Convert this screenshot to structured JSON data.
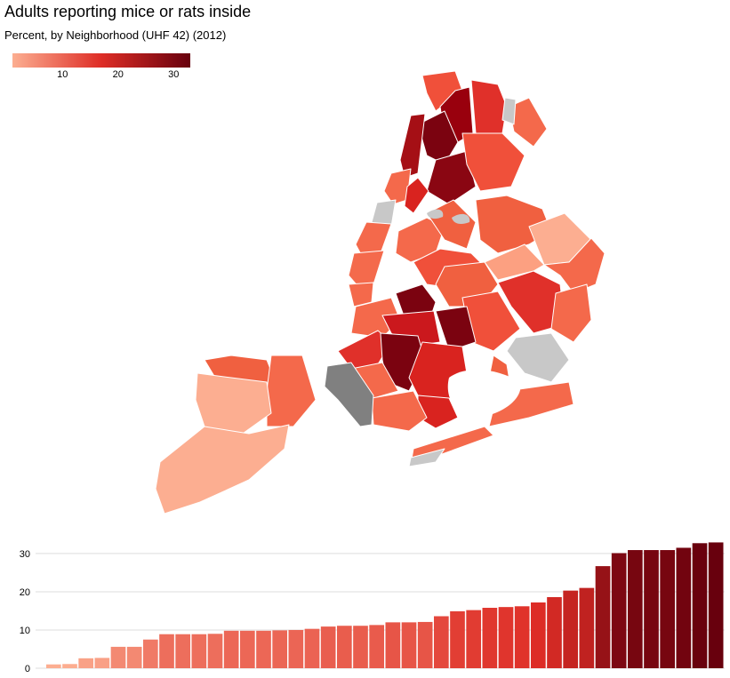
{
  "header": {
    "title": "Adults reporting mice or rats inside",
    "subtitle": "Percent, by Neighborhood (UHF 42) (2012)"
  },
  "legend": {
    "ticks": [
      "10",
      "20",
      "30"
    ],
    "tick_values": [
      10,
      20,
      30
    ],
    "min": 1,
    "max": 33,
    "color_low": "#fcae91",
    "color_high": "#67000d"
  },
  "colors": {
    "no_data": "#c8c8c8",
    "selected_region": "#808080"
  },
  "chart_data": {
    "type": "bar",
    "title": "Adults reporting mice or rats inside",
    "subtitle": "Percent, by Neighborhood (UHF 42) (2012)",
    "ylim": [
      0,
      33
    ],
    "yticks": [
      0,
      10,
      20,
      30
    ],
    "ytick_labels": [
      "0",
      "10",
      "20",
      "30"
    ],
    "grid": true,
    "values": [
      1.0,
      1.1,
      2.6,
      2.7,
      5.6,
      5.6,
      7.5,
      8.9,
      8.9,
      8.9,
      9.0,
      9.8,
      9.8,
      9.8,
      9.9,
      10.0,
      10.3,
      10.9,
      11.1,
      11.1,
      11.3,
      12.0,
      12.0,
      12.1,
      13.6,
      14.9,
      15.2,
      15.8,
      16.0,
      16.2,
      17.2,
      18.6,
      20.3,
      21.0,
      26.7,
      30.1,
      30.9,
      30.9,
      30.9,
      31.5,
      32.7,
      32.9
    ]
  }
}
